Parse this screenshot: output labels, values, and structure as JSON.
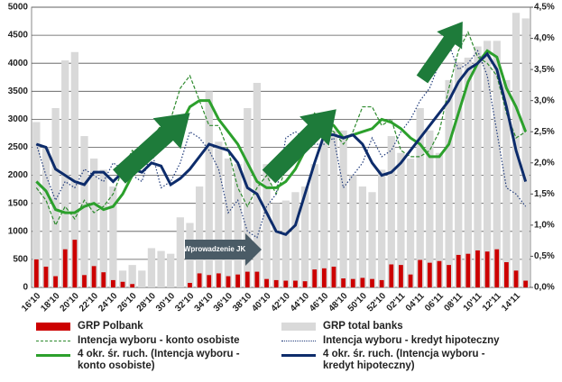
{
  "chart_data": {
    "type": "bar",
    "categories": [
      "16'10",
      null,
      "18'10",
      null,
      "20'10",
      null,
      "22'10",
      null,
      "24'10",
      null,
      "26'10",
      null,
      "28'10",
      null,
      "30'10",
      null,
      "32'10",
      null,
      "34'10",
      null,
      "36'10",
      null,
      "38'10",
      null,
      "40'10",
      null,
      "42'10",
      null,
      "44'10",
      null,
      "46'10",
      null,
      "48'10",
      null,
      "50'10",
      null,
      "52'10",
      null,
      "02'11",
      null,
      "04'11",
      null,
      "06'11",
      null,
      "08'11",
      null,
      "10'11",
      null,
      "12'11",
      null,
      "14'11",
      null
    ],
    "series": [
      {
        "name": "GRP Polbank",
        "type": "bar",
        "color": "#cc0000",
        "values": [
          500,
          370,
          200,
          680,
          850,
          220,
          380,
          270,
          130,
          100,
          60,
          0,
          0,
          0,
          0,
          0,
          80,
          250,
          220,
          250,
          200,
          230,
          280,
          280,
          150,
          130,
          120,
          120,
          110,
          320,
          340,
          370,
          160,
          150,
          170,
          150,
          130,
          410,
          400,
          230,
          490,
          440,
          470,
          400,
          580,
          600,
          660,
          640,
          680,
          450,
          300,
          120
        ]
      },
      {
        "name": "GRP total banks",
        "type": "bar",
        "color": "#d9d9d9",
        "values": [
          2950,
          2500,
          3200,
          4050,
          4200,
          2700,
          2300,
          2100,
          1800,
          300,
          400,
          300,
          700,
          650,
          600,
          1250,
          1150,
          1800,
          3500,
          2600,
          2300,
          2200,
          3200,
          3650,
          2200,
          1500,
          1550,
          1700,
          1800,
          2200,
          2600,
          2800,
          2800,
          2000,
          1800,
          1700,
          2100,
          2700,
          2400,
          2300,
          3200,
          2800,
          2400,
          3700,
          4000,
          4100,
          4300,
          4400,
          4400,
          3700,
          4900,
          4800
        ]
      },
      {
        "name": "Intencja wyboru - konto osobiste",
        "type": "line",
        "axis": "y2",
        "dash": "dashed",
        "color": "#2e8b2e",
        "values": [
          1.6,
          1.4,
          1.0,
          1.3,
          1.1,
          1.4,
          1.2,
          1.3,
          1.5,
          1.9,
          2.2,
          2.0,
          2.4,
          2.6,
          2.7,
          3.2,
          3.4,
          3.0,
          2.6,
          2.6,
          2.2,
          1.6,
          1.3,
          1.6,
          1.8,
          1.5,
          1.9,
          2.4,
          2.5,
          2.8,
          2.6,
          2.5,
          2.3,
          2.5,
          2.9,
          2.9,
          2.6,
          2.7,
          2.2,
          2.1,
          2.1,
          2.2,
          2.5,
          3.2,
          3.8,
          4.1,
          3.7,
          3.6,
          3.4,
          2.8,
          2.4,
          2.5
        ]
      },
      {
        "name": "Intencja wyboru - kredyt hipoteczny",
        "type": "line",
        "axis": "y2",
        "dash": "dotted",
        "color": "#1f3a7a",
        "values": [
          2.3,
          1.8,
          1.4,
          1.7,
          1.6,
          1.9,
          1.8,
          1.7,
          2.0,
          1.9,
          1.8,
          1.7,
          2.2,
          1.6,
          1.7,
          2.0,
          2.5,
          2.4,
          2.2,
          1.9,
          1.2,
          1.4,
          0.9,
          0.8,
          1.3,
          1.5,
          2.4,
          2.5,
          2.4,
          2.3,
          2.3,
          2.4,
          1.6,
          1.8,
          2.0,
          2.4,
          2.1,
          2.2,
          2.5,
          2.7,
          3.0,
          3.2,
          3.6,
          3.9,
          3.5,
          3.6,
          3.8,
          3.4,
          2.5,
          1.6,
          1.5,
          1.3
        ]
      },
      {
        "name": "4 okr. śr. ruch. (Intencja wyboru - konto osobiste)",
        "type": "line",
        "axis": "y2",
        "dash": "solid",
        "color": "#2ca02c",
        "values": [
          1.7,
          1.55,
          1.25,
          1.2,
          1.2,
          1.3,
          1.35,
          1.25,
          1.3,
          1.5,
          1.8,
          2.0,
          2.1,
          2.3,
          2.4,
          2.6,
          2.9,
          3.0,
          3.0,
          2.7,
          2.5,
          2.3,
          2.0,
          1.7,
          1.6,
          1.6,
          1.7,
          1.9,
          2.2,
          2.5,
          2.7,
          2.6,
          2.4,
          2.45,
          2.5,
          2.55,
          2.7,
          2.65,
          2.55,
          2.4,
          2.3,
          2.1,
          2.1,
          2.3,
          2.8,
          3.3,
          3.6,
          3.8,
          3.7,
          3.2,
          2.9,
          2.5
        ]
      },
      {
        "name": "4 okr. śr. ruch. (Intencja wyboru - kredyt hipoteczny)",
        "type": "line",
        "axis": "y2",
        "dash": "solid",
        "color": "#0d2c6b",
        "values": [
          2.3,
          2.25,
          1.9,
          1.8,
          1.7,
          1.65,
          1.85,
          1.85,
          1.7,
          1.85,
          1.9,
          1.85,
          2.0,
          1.95,
          1.65,
          1.75,
          1.9,
          2.1,
          2.3,
          2.25,
          2.2,
          2.0,
          1.6,
          1.5,
          1.2,
          0.9,
          0.85,
          1.0,
          1.5,
          2.0,
          2.45,
          2.45,
          2.4,
          2.45,
          2.3,
          2.0,
          1.8,
          1.85,
          2.0,
          2.2,
          2.4,
          2.6,
          2.8,
          3.0,
          3.3,
          3.5,
          3.6,
          3.75,
          3.5,
          2.9,
          2.2,
          1.7
        ]
      }
    ],
    "ylim": [
      0,
      5000
    ],
    "yticks": [
      0,
      500,
      1000,
      1500,
      2000,
      2500,
      3000,
      3500,
      4000,
      4500,
      5000
    ],
    "y2lim": [
      0,
      4.5
    ],
    "y2ticks": [
      {
        "value": 0,
        "label": "0,0%"
      },
      {
        "value": 0.5,
        "label": "0,5%"
      },
      {
        "value": 1,
        "label": "1,0%"
      },
      {
        "value": 1.5,
        "label": "1,5%"
      },
      {
        "value": 2,
        "label": "2,0%"
      },
      {
        "value": 2.5,
        "label": "2,5%"
      },
      {
        "value": 3,
        "label": "3,0%"
      },
      {
        "value": 3.5,
        "label": "3,5%"
      },
      {
        "value": 4,
        "label": "4,0%"
      },
      {
        "value": 4.5,
        "label": "4,5%"
      }
    ],
    "grid": true,
    "legend": "bottom",
    "annotation": "Wprowadzenie JK"
  }
}
